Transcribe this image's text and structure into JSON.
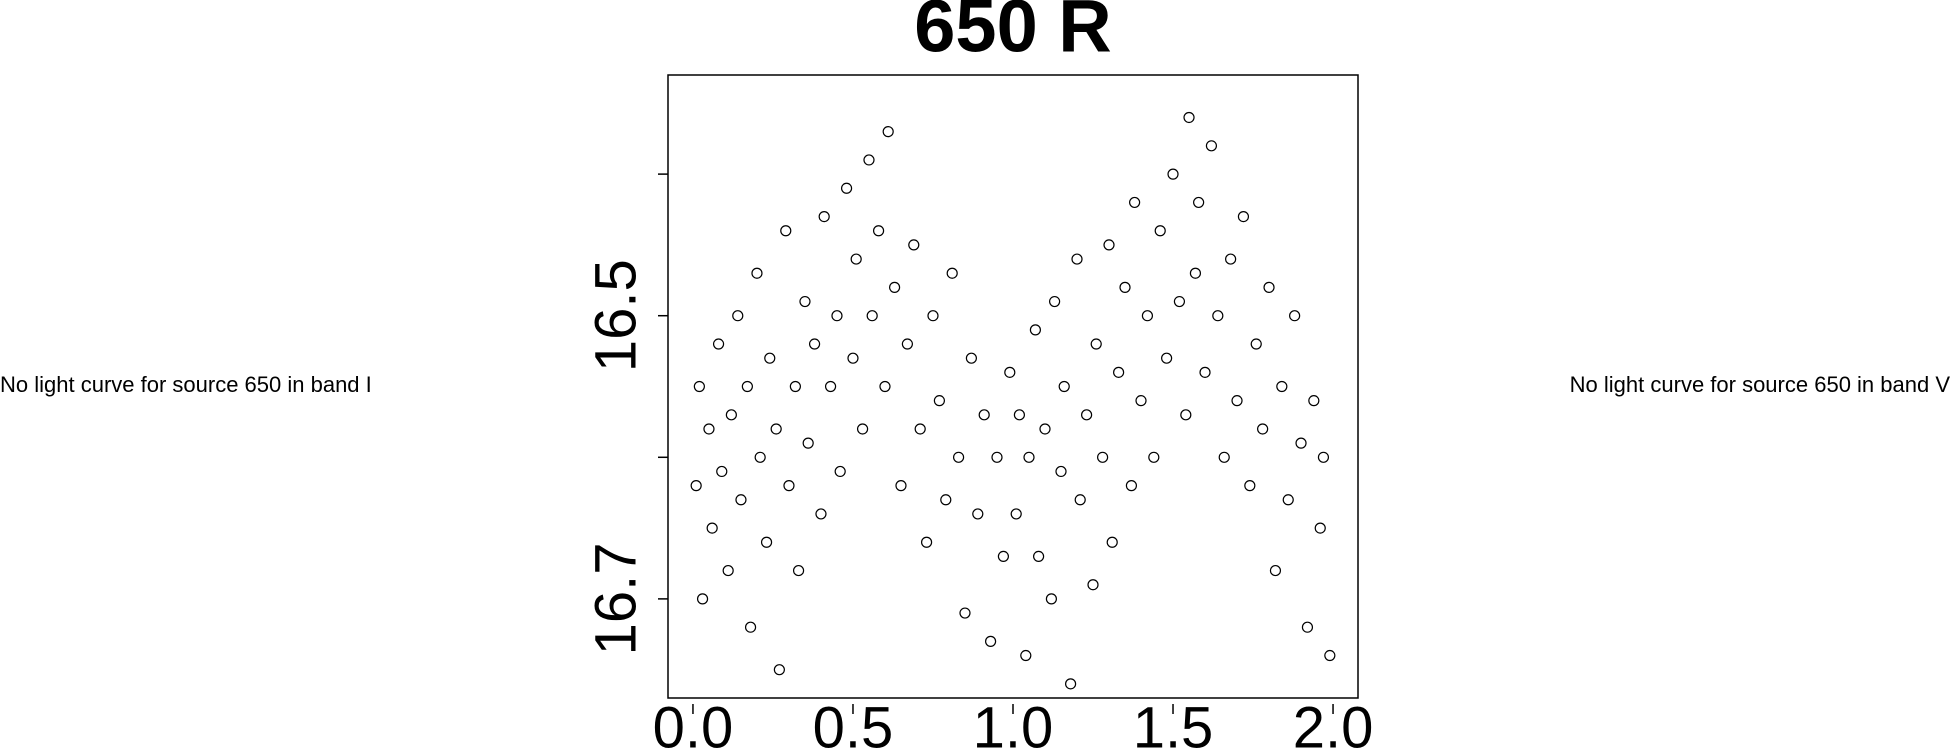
{
  "chart_data": {
    "type": "scatter",
    "title": "650 R",
    "annotations": [
      "No light curve for source 650 in band I",
      "No light curve for source 650 in band V"
    ],
    "color": "#000000",
    "xlim": [
      -0.078,
      2.078
    ],
    "ylim": [
      16.77,
      16.33
    ],
    "xticks": [
      {
        "value": 0,
        "label": "0.0"
      },
      {
        "value": 0.5,
        "label": "0.5"
      },
      {
        "value": 1,
        "label": "1.0"
      },
      {
        "value": 1.5,
        "label": "1.5"
      },
      {
        "value": 2,
        "label": "2.0"
      }
    ],
    "yticks": [
      16.5,
      16.7
    ],
    "yticks_unlabeled": [
      16.4,
      16.6
    ],
    "x": [
      0.01,
      0.02,
      0.03,
      0.05,
      0.06,
      0.08,
      0.09,
      0.11,
      0.12,
      0.14,
      0.15,
      0.17,
      0.18,
      0.2,
      0.21,
      0.23,
      0.24,
      0.26,
      0.27,
      0.29,
      0.3,
      0.32,
      0.33,
      0.35,
      0.36,
      0.38,
      0.4,
      0.41,
      0.43,
      0.45,
      0.46,
      0.48,
      0.5,
      0.51,
      0.53,
      0.55,
      0.56,
      0.58,
      0.6,
      0.61,
      0.63,
      0.65,
      0.67,
      0.69,
      0.71,
      0.73,
      0.75,
      0.77,
      0.79,
      0.81,
      0.83,
      0.85,
      0.87,
      0.89,
      0.91,
      0.93,
      0.95,
      0.97,
      0.99,
      1.01,
      1.02,
      1.04,
      1.05,
      1.07,
      1.08,
      1.1,
      1.12,
      1.13,
      1.15,
      1.16,
      1.18,
      1.2,
      1.21,
      1.23,
      1.25,
      1.26,
      1.28,
      1.3,
      1.31,
      1.33,
      1.35,
      1.37,
      1.38,
      1.4,
      1.42,
      1.44,
      1.46,
      1.48,
      1.5,
      1.52,
      1.54,
      1.55,
      1.57,
      1.58,
      1.6,
      1.62,
      1.64,
      1.66,
      1.68,
      1.7,
      1.72,
      1.74,
      1.76,
      1.78,
      1.8,
      1.82,
      1.84,
      1.86,
      1.88,
      1.9,
      1.92,
      1.94,
      1.96,
      1.97,
      1.99
    ],
    "values": [
      16.62,
      16.55,
      16.7,
      16.58,
      16.65,
      16.52,
      16.61,
      16.68,
      16.57,
      16.5,
      16.63,
      16.55,
      16.72,
      16.47,
      16.6,
      16.66,
      16.53,
      16.58,
      16.75,
      16.44,
      16.62,
      16.55,
      16.68,
      16.49,
      16.59,
      16.52,
      16.64,
      16.43,
      16.55,
      16.5,
      16.61,
      16.41,
      16.53,
      16.46,
      16.58,
      16.39,
      16.5,
      16.44,
      16.55,
      16.37,
      16.48,
      16.62,
      16.52,
      16.45,
      16.58,
      16.66,
      16.5,
      16.56,
      16.63,
      16.47,
      16.6,
      16.71,
      16.53,
      16.64,
      16.57,
      16.73,
      16.6,
      16.67,
      16.54,
      16.64,
      16.57,
      16.74,
      16.6,
      16.51,
      16.67,
      16.58,
      16.7,
      16.49,
      16.61,
      16.55,
      16.76,
      16.46,
      16.63,
      16.57,
      16.69,
      16.52,
      16.6,
      16.45,
      16.66,
      16.54,
      16.48,
      16.62,
      16.42,
      16.56,
      16.5,
      16.6,
      16.44,
      16.53,
      16.4,
      16.49,
      16.57,
      16.36,
      16.47,
      16.42,
      16.54,
      16.38,
      16.5,
      16.6,
      16.46,
      16.56,
      16.43,
      16.62,
      16.52,
      16.58,
      16.48,
      16.68,
      16.55,
      16.63,
      16.5,
      16.59,
      16.72,
      16.56,
      16.65,
      16.6,
      16.74
    ]
  }
}
